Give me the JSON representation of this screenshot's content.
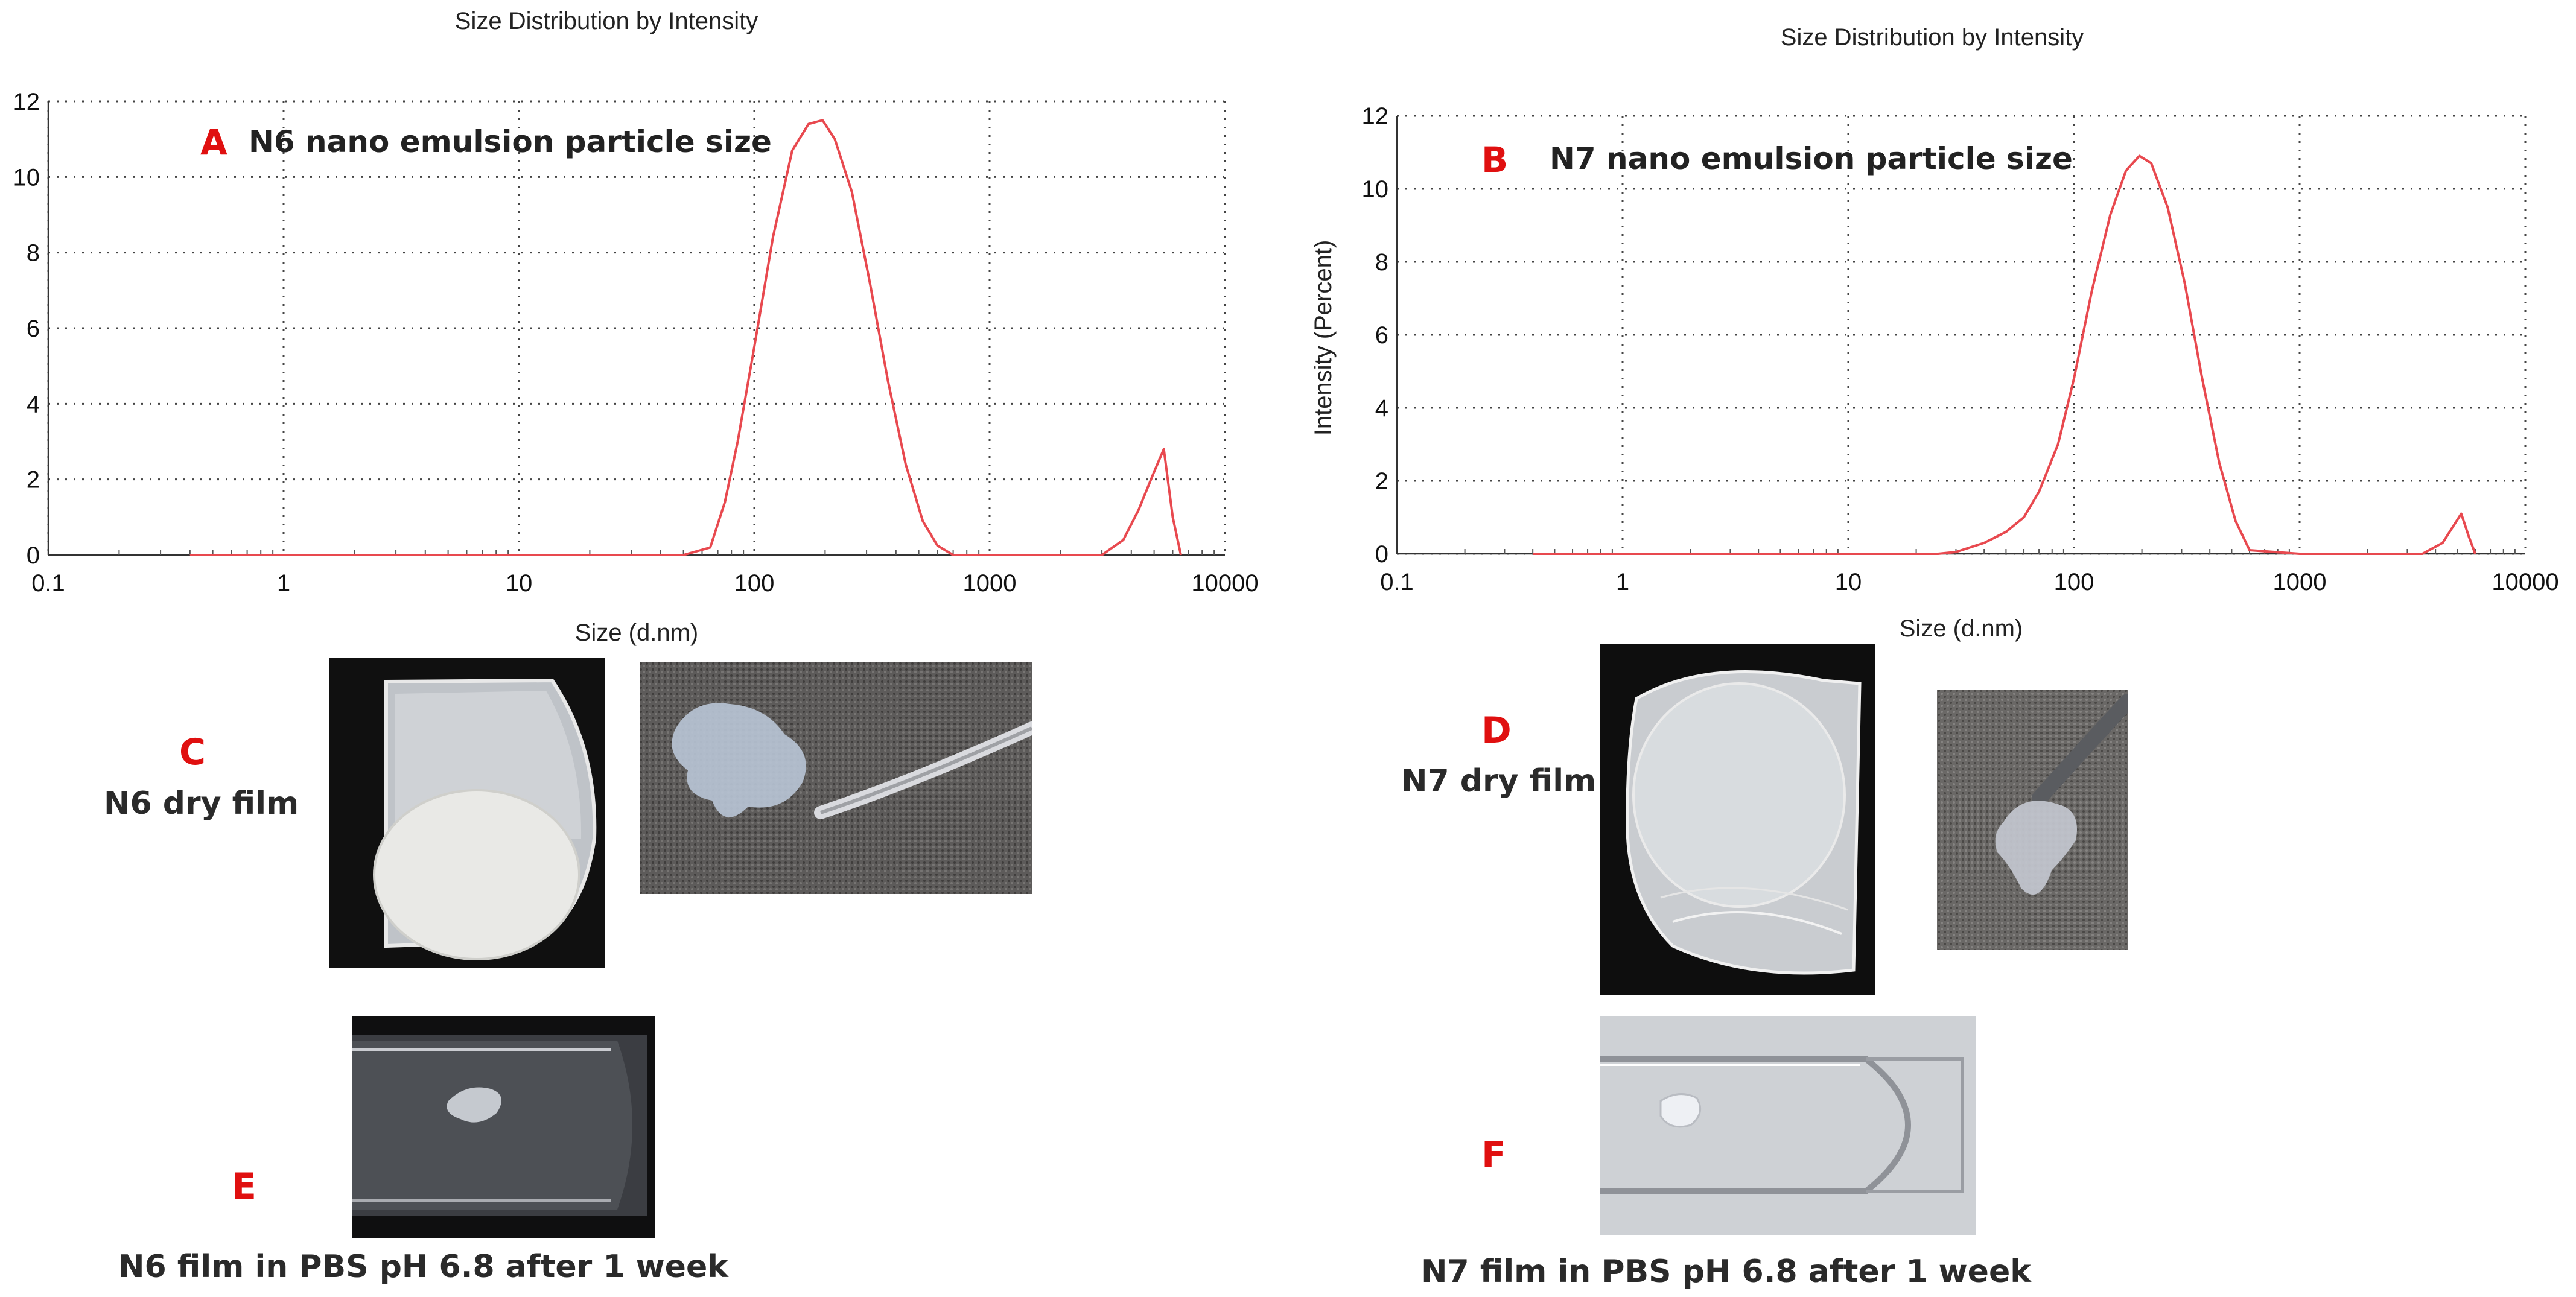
{
  "chart_data": [
    {
      "type": "line",
      "title": "Size Distribution by Intensity",
      "xlabel": "Size (d.nm)",
      "ylabel": "",
      "xscale": "log",
      "xlim": [
        0.1,
        10000
      ],
      "ylim": [
        0,
        12
      ],
      "xticks": [
        "0.1",
        "1",
        "10",
        "100",
        "1000",
        "10000"
      ],
      "yticks": [
        "0",
        "2",
        "4",
        "6",
        "8",
        "10",
        "12"
      ],
      "grid": true,
      "annotation_letter": "A",
      "annotation_text": "N6 nano emulsion particle size",
      "series": [
        {
          "color": "#e8494f",
          "x": [
            0.4,
            1,
            10,
            50,
            65,
            75,
            85,
            100,
            120,
            145,
            170,
            195,
            220,
            260,
            310,
            370,
            440,
            520,
            600,
            700,
            1000,
            2000,
            3000,
            3700,
            4300,
            5000,
            5500,
            6000,
            6500
          ],
          "y": [
            0,
            0,
            0,
            0,
            0.2,
            1.4,
            3.0,
            5.5,
            8.4,
            10.7,
            11.4,
            11.5,
            11.0,
            9.6,
            7.2,
            4.6,
            2.4,
            0.9,
            0.25,
            0,
            0,
            0,
            0,
            0.4,
            1.2,
            2.2,
            2.8,
            1.0,
            0
          ]
        }
      ]
    },
    {
      "type": "line",
      "title": "Size Distribution by Intensity",
      "xlabel": "Size (d.nm)",
      "ylabel": "Intensity (Percent)",
      "xscale": "log",
      "xlim": [
        0.1,
        10000
      ],
      "ylim": [
        0,
        12
      ],
      "xticks": [
        "0.1",
        "1",
        "10",
        "100",
        "1000",
        "10000"
      ],
      "yticks": [
        "0",
        "2",
        "4",
        "6",
        "8",
        "10",
        "12"
      ],
      "grid": true,
      "annotation_letter": "B",
      "annotation_text": "N7 nano emulsion particle size",
      "series": [
        {
          "color": "#e8494f",
          "x": [
            0.4,
            1,
            10,
            25,
            30,
            40,
            50,
            60,
            70,
            85,
            100,
            120,
            145,
            170,
            195,
            220,
            260,
            310,
            370,
            440,
            520,
            600,
            1000,
            2000,
            3500,
            4300,
            5200,
            5600,
            6000
          ],
          "y": [
            0,
            0,
            0,
            0,
            0.05,
            0.3,
            0.6,
            1.0,
            1.7,
            3.0,
            4.8,
            7.2,
            9.3,
            10.5,
            10.9,
            10.7,
            9.5,
            7.4,
            4.8,
            2.5,
            0.9,
            0.1,
            0,
            0,
            0,
            0.3,
            1.1,
            0.5,
            0
          ]
        }
      ]
    }
  ],
  "panels": {
    "c": {
      "letter": "C",
      "caption": "N6 dry film"
    },
    "d": {
      "letter": "D",
      "caption": "N7 dry film"
    },
    "e": {
      "letter": "E",
      "caption": "N6 film in PBS pH 6.8 after 1 week"
    },
    "f": {
      "letter": "F",
      "caption": "N7 film in PBS pH 6.8 after 1 week"
    }
  },
  "colors": {
    "panel_letter": "#e01010",
    "series_line": "#e8494f"
  }
}
